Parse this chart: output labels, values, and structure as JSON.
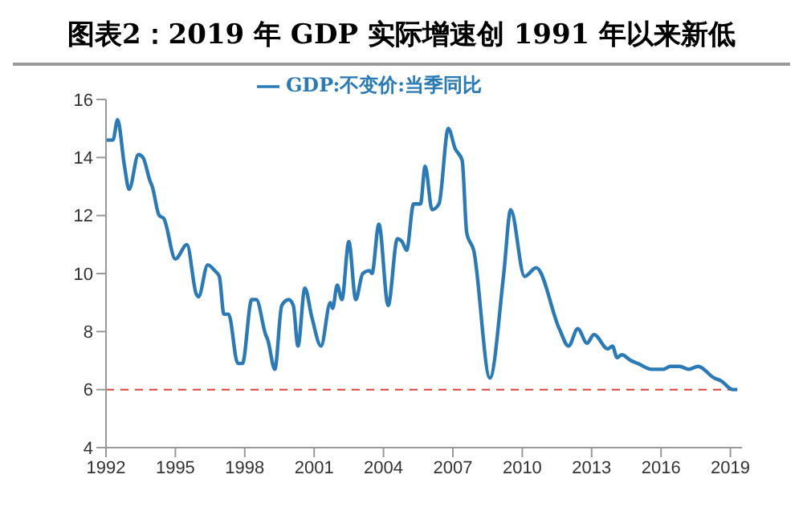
{
  "chart_data": {
    "type": "line",
    "title": "图表2：2019 年 GDP 实际增速创 1991 年以来新低",
    "x": [
      1992.0,
      1992.3,
      1992.5,
      1992.8,
      1993.0,
      1993.4,
      1993.6,
      1993.9,
      1994.0,
      1994.3,
      1994.5,
      1995.0,
      1995.5,
      1995.9,
      1996.0,
      1996.4,
      1996.7,
      1996.9,
      1997.1,
      1997.3,
      1997.7,
      1997.9,
      1998.3,
      1998.5,
      1998.9,
      1999.0,
      1999.3,
      1999.6,
      1999.9,
      2000.1,
      2000.3,
      2000.6,
      2000.9,
      2001.3,
      2001.7,
      2001.8,
      2002.0,
      2002.2,
      2002.5,
      2002.8,
      2003.1,
      2003.4,
      2003.5,
      2003.8,
      2004.2,
      2004.6,
      2004.8,
      2005.0,
      2005.3,
      2005.6,
      2005.8,
      2006.1,
      2006.4,
      2006.8,
      2007.1,
      2007.4,
      2007.6,
      2007.9,
      2008.6,
      2009.2,
      2009.5,
      2010.1,
      2010.6,
      2011.6,
      2012.0,
      2012.4,
      2012.8,
      2013.1,
      2013.7,
      2013.9,
      2014.1,
      2014.3,
      2014.7,
      2015.0,
      2015.6,
      2016.1,
      2016.4,
      2016.8,
      2017.2,
      2017.6,
      2018.3,
      2018.6,
      2019.1,
      2019.3
    ],
    "series": [
      {
        "name": "GDP:不变价:当季同比",
        "color": "#2a7ab8",
        "values": [
          14.6,
          14.6,
          15.3,
          13.7,
          12.9,
          14.1,
          14.0,
          13.2,
          13.0,
          12.0,
          11.9,
          10.5,
          11.0,
          9.3,
          9.2,
          10.3,
          10.1,
          9.9,
          8.6,
          8.6,
          6.9,
          6.9,
          9.1,
          9.1,
          7.9,
          7.7,
          6.7,
          8.9,
          9.1,
          8.9,
          7.5,
          9.5,
          8.5,
          7.5,
          9.0,
          8.8,
          9.6,
          9.1,
          11.1,
          9.1,
          10.0,
          10.1,
          10.0,
          11.7,
          8.9,
          11.2,
          11.1,
          10.8,
          12.4,
          12.4,
          13.7,
          12.2,
          12.4,
          15.0,
          14.3,
          13.9,
          11.4,
          10.8,
          6.4,
          10.0,
          12.2,
          9.9,
          10.2,
          8.1,
          7.5,
          8.1,
          7.6,
          7.9,
          7.4,
          7.5,
          7.1,
          7.2,
          7.0,
          6.9,
          6.7,
          6.7,
          6.8,
          6.8,
          6.7,
          6.8,
          6.4,
          6.3,
          6.0,
          6.0
        ]
      }
    ],
    "xlim": [
      1992,
      2019.5
    ],
    "xticks": [
      1992,
      1995,
      1998,
      2001,
      2004,
      2007,
      2010,
      2013,
      2016,
      2019
    ],
    "ylim": [
      4,
      16
    ],
    "yticks": [
      4,
      6,
      8,
      10,
      12,
      14,
      16
    ],
    "ref_lines": [
      {
        "axis": "y",
        "value": 6,
        "color": "#e0443a",
        "line_style": "dashed"
      }
    ],
    "legend": "top",
    "grid": false,
    "marker": "none",
    "line_style": "solid"
  }
}
